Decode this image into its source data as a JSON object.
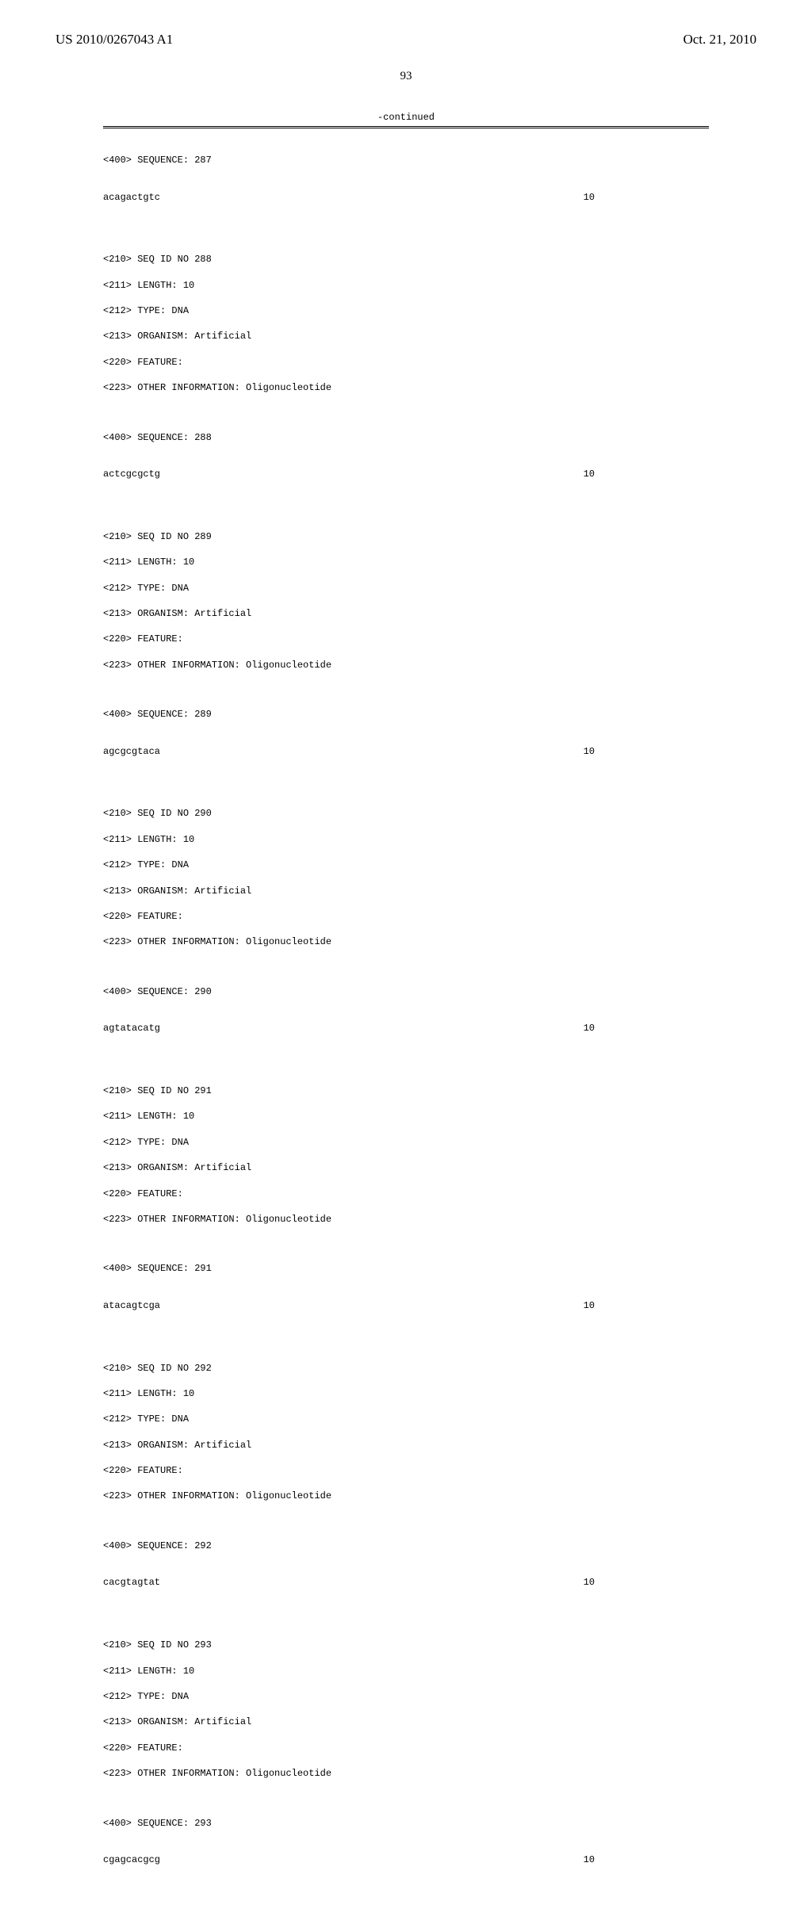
{
  "header": {
    "pub_number": "US 2010/0267043 A1",
    "pub_date": "Oct. 21, 2010"
  },
  "page_number": "93",
  "continued_label": "-continued",
  "sequences": [
    {
      "header_400": "<400> SEQUENCE: 287",
      "sequence": "acagactgtc",
      "length_pos": "10",
      "meta": null
    },
    {
      "meta": [
        "<210> SEQ ID NO 288",
        "<211> LENGTH: 10",
        "<212> TYPE: DNA",
        "<213> ORGANISM: Artificial",
        "<220> FEATURE:",
        "<223> OTHER INFORMATION: Oligonucleotide"
      ],
      "header_400": "<400> SEQUENCE: 288",
      "sequence": "actcgcgctg",
      "length_pos": "10"
    },
    {
      "meta": [
        "<210> SEQ ID NO 289",
        "<211> LENGTH: 10",
        "<212> TYPE: DNA",
        "<213> ORGANISM: Artificial",
        "<220> FEATURE:",
        "<223> OTHER INFORMATION: Oligonucleotide"
      ],
      "header_400": "<400> SEQUENCE: 289",
      "sequence": "agcgcgtaca",
      "length_pos": "10"
    },
    {
      "meta": [
        "<210> SEQ ID NO 290",
        "<211> LENGTH: 10",
        "<212> TYPE: DNA",
        "<213> ORGANISM: Artificial",
        "<220> FEATURE:",
        "<223> OTHER INFORMATION: Oligonucleotide"
      ],
      "header_400": "<400> SEQUENCE: 290",
      "sequence": "agtatacatg",
      "length_pos": "10"
    },
    {
      "meta": [
        "<210> SEQ ID NO 291",
        "<211> LENGTH: 10",
        "<212> TYPE: DNA",
        "<213> ORGANISM: Artificial",
        "<220> FEATURE:",
        "<223> OTHER INFORMATION: Oligonucleotide"
      ],
      "header_400": "<400> SEQUENCE: 291",
      "sequence": "atacagtcga",
      "length_pos": "10"
    },
    {
      "meta": [
        "<210> SEQ ID NO 292",
        "<211> LENGTH: 10",
        "<212> TYPE: DNA",
        "<213> ORGANISM: Artificial",
        "<220> FEATURE:",
        "<223> OTHER INFORMATION: Oligonucleotide"
      ],
      "header_400": "<400> SEQUENCE: 292",
      "sequence": "cacgtagtat",
      "length_pos": "10"
    },
    {
      "meta": [
        "<210> SEQ ID NO 293",
        "<211> LENGTH: 10",
        "<212> TYPE: DNA",
        "<213> ORGANISM: Artificial",
        "<220> FEATURE:",
        "<223> OTHER INFORMATION: Oligonucleotide"
      ],
      "header_400": "<400> SEQUENCE: 293",
      "sequence": "cgagcacgcg",
      "length_pos": "10"
    }
  ]
}
